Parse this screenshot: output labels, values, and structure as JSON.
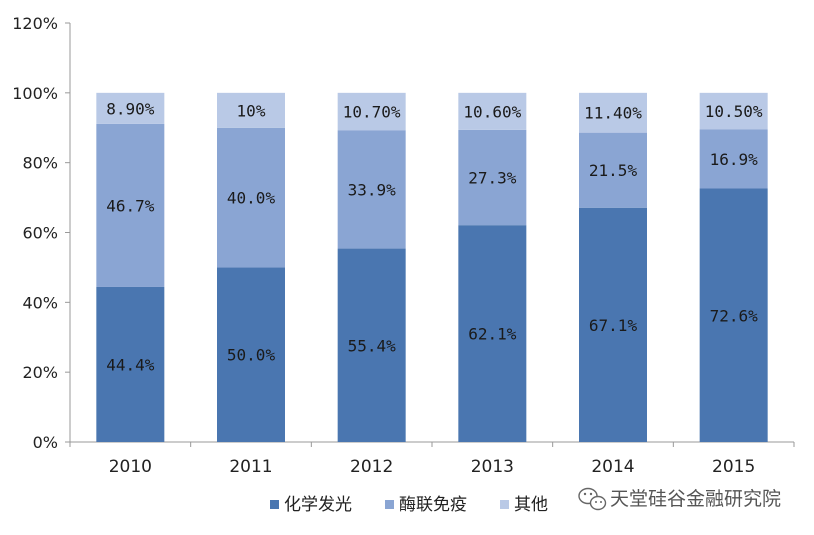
{
  "chart_data": {
    "type": "bar",
    "stacked": true,
    "categories": [
      "2010",
      "2011",
      "2012",
      "2013",
      "2014",
      "2015"
    ],
    "series": [
      {
        "name": "化学发光",
        "values": [
          44.4,
          50.0,
          55.4,
          62.1,
          67.1,
          72.6
        ],
        "labels": [
          "44.4%",
          "50.0%",
          "55.4%",
          "62.1%",
          "67.1%",
          "72.6%"
        ],
        "color": "#4a76b0"
      },
      {
        "name": "酶联免疫",
        "values": [
          46.7,
          40.0,
          33.9,
          27.3,
          21.5,
          16.9
        ],
        "labels": [
          "46.7%",
          "40.0%",
          "33.9%",
          "27.3%",
          "21.5%",
          "16.9%"
        ],
        "color": "#8aa5d3"
      },
      {
        "name": "其他",
        "values": [
          8.9,
          10.0,
          10.7,
          10.6,
          11.4,
          10.5
        ],
        "labels": [
          "8.90%",
          "10%",
          "10.70%",
          "10.60%",
          "11.40%",
          "10.50%"
        ],
        "color": "#b9c9e6"
      }
    ],
    "yticks": [
      "0%",
      "20%",
      "40%",
      "60%",
      "80%",
      "100%",
      "120%"
    ],
    "ylim": [
      0,
      120
    ],
    "grid": false,
    "legend_position": "bottom"
  },
  "watermark": {
    "text": "天堂硅谷金融研究院",
    "icon": "wechat-icon"
  }
}
